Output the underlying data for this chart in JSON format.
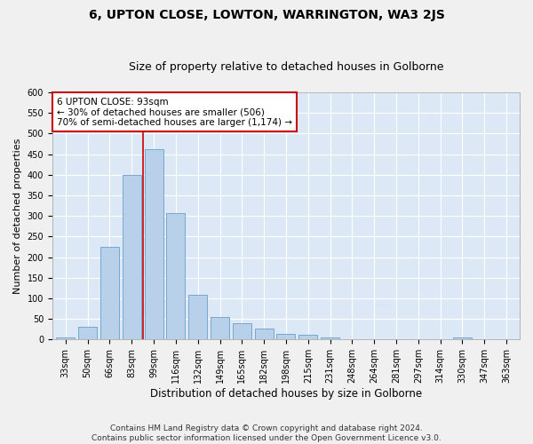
{
  "title": "6, UPTON CLOSE, LOWTON, WARRINGTON, WA3 2JS",
  "subtitle": "Size of property relative to detached houses in Golborne",
  "xlabel": "Distribution of detached houses by size in Golborne",
  "ylabel": "Number of detached properties",
  "categories": [
    "33sqm",
    "50sqm",
    "66sqm",
    "83sqm",
    "99sqm",
    "116sqm",
    "132sqm",
    "149sqm",
    "165sqm",
    "182sqm",
    "198sqm",
    "215sqm",
    "231sqm",
    "248sqm",
    "264sqm",
    "281sqm",
    "297sqm",
    "314sqm",
    "330sqm",
    "347sqm",
    "363sqm"
  ],
  "values": [
    5,
    30,
    225,
    400,
    463,
    307,
    108,
    55,
    40,
    27,
    13,
    11,
    5,
    1,
    0,
    0,
    0,
    0,
    5,
    0,
    0
  ],
  "bar_color": "#b8d0ea",
  "bar_edge_color": "#6a9fc8",
  "vline_x": 3.5,
  "vline_color": "#cc0000",
  "annotation_text": "6 UPTON CLOSE: 93sqm\n← 30% of detached houses are smaller (506)\n70% of semi-detached houses are larger (1,174) →",
  "annotation_box_color": "#ffffff",
  "annotation_box_edge": "#cc0000",
  "ylim": [
    0,
    600
  ],
  "yticks": [
    0,
    50,
    100,
    150,
    200,
    250,
    300,
    350,
    400,
    450,
    500,
    550,
    600
  ],
  "background_color": "#dce8f5",
  "grid_color": "#ffffff",
  "footnote": "Contains HM Land Registry data © Crown copyright and database right 2024.\nContains public sector information licensed under the Open Government Licence v3.0.",
  "title_fontsize": 10,
  "subtitle_fontsize": 9,
  "xlabel_fontsize": 8.5,
  "ylabel_fontsize": 8,
  "tick_fontsize": 7,
  "annot_fontsize": 7.5,
  "footnote_fontsize": 6.5
}
